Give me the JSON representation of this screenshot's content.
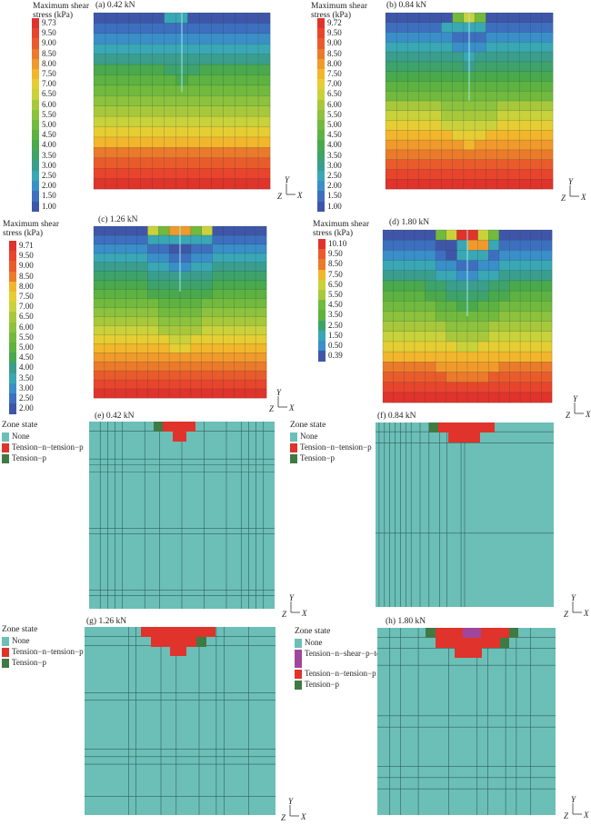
{
  "stress_panels": [
    {
      "id": "a",
      "title": "(a) 0.42 kN",
      "legend_title": [
        "Maximum shear",
        "stress (kPa)"
      ],
      "ticks": [
        "9.73",
        "9.50",
        "9.00",
        "8.50",
        "8.00",
        "7.50",
        "7.00",
        "6.50",
        "6.00",
        "5.50",
        "5.00",
        "4.50",
        "4.00",
        "3.50",
        "3.00",
        "2.50",
        "2.00",
        "1.50",
        "1.00"
      ],
      "axis": {
        "v": "Y",
        "z": "Z",
        "h": "X"
      }
    },
    {
      "id": "b",
      "title": "(b) 0.84 kN",
      "legend_title": [
        "Maximum shear",
        "stress (kPa)"
      ],
      "ticks": [
        "9.72",
        "9.50",
        "9.00",
        "8.50",
        "8.00",
        "7.50",
        "7.00",
        "6.50",
        "6.00",
        "5.50",
        "5.00",
        "4.50",
        "4.00",
        "3.50",
        "3.00",
        "2.50",
        "2.00",
        "1.50",
        "1.00"
      ],
      "axis": {
        "v": "Y",
        "z": "Z",
        "h": "X"
      }
    },
    {
      "id": "c",
      "title": "(c) 1.26 kN",
      "legend_title": [
        "Maximum shear",
        "stress (kPa)"
      ],
      "ticks": [
        "9.71",
        "9.50",
        "9.00",
        "8.50",
        "8.00",
        "7.50",
        "7.00",
        "6.50",
        "6.00",
        "5.50",
        "5.00",
        "4.50",
        "4.00",
        "3.50",
        "3.00",
        "2.50",
        "2.00"
      ],
      "axis": {
        "v": "Y",
        "z": "Z",
        "h": "X"
      }
    },
    {
      "id": "d",
      "title": "(d) 1.80 kN",
      "legend_title": [
        "Maximum shear",
        "stress (kPa)"
      ],
      "ticks": [
        "10.10",
        "9.50",
        "8.50",
        "7.50",
        "6.50",
        "5.50",
        "4.50",
        "3.50",
        "2.50",
        "1.50",
        "0.50",
        "0.39"
      ],
      "axis": {
        "v": "Y",
        "z": "Z",
        "h": "X"
      }
    }
  ],
  "zone_panels": [
    {
      "id": "e",
      "title": "(e) 0.42 kN",
      "legend_title": "Zone state",
      "entries": [
        {
          "label": "None",
          "color": "#6cbfb6"
        },
        {
          "label": "Tension−n−tension−p",
          "color": "#e0332b"
        },
        {
          "label": "Tension−p",
          "color": "#3f7a44"
        }
      ],
      "axis": {
        "v": "Y",
        "z": "Z",
        "h": "X"
      }
    },
    {
      "id": "f",
      "title": "(f) 0.84 kN",
      "legend_title": "Zone state",
      "entries": [
        {
          "label": "None",
          "color": "#6cbfb6"
        },
        {
          "label": "Tension−n−tension−p",
          "color": "#e0332b"
        },
        {
          "label": "Tension−p",
          "color": "#3f7a44"
        }
      ],
      "axis": {
        "v": "Y",
        "z": "Z",
        "h": "X"
      }
    },
    {
      "id": "g",
      "title": "(g) 1.26 kN",
      "legend_title": "Zone state",
      "entries": [
        {
          "label": "None",
          "color": "#6cbfb6"
        },
        {
          "label": "Tension−n−tension−p",
          "color": "#e0332b"
        },
        {
          "label": "Tension−p",
          "color": "#3f7a44"
        }
      ],
      "axis": {
        "v": "Y",
        "z": "Z",
        "h": "X"
      }
    },
    {
      "id": "h",
      "title": "(h) 1.80 kN",
      "legend_title": "Zone state",
      "entries": [
        {
          "label": "None",
          "color": "#6cbfb6"
        },
        {
          "label": "Tension−n−shear−p−tension−p",
          "color": "#a0479d"
        },
        {
          "label": "Tension−n−tension−p",
          "color": "#e0332b"
        },
        {
          "label": "Tension−p",
          "color": "#3f7a44"
        }
      ],
      "axis": {
        "v": "Y",
        "z": "Z",
        "h": "X"
      }
    }
  ],
  "colors": {
    "stress_scale": [
      "#e0332b",
      "#e8452c",
      "#ea5b2c",
      "#ec7a2b",
      "#f09a2b",
      "#f2b62c",
      "#e6cd33",
      "#c9d23a",
      "#a8c83c",
      "#8cc23d",
      "#72ba3e",
      "#5db242",
      "#4aa94c",
      "#3ea36a",
      "#3b9e8d",
      "#3aa7b5",
      "#3a8fc9",
      "#3e6fbf",
      "#3f56a8"
    ],
    "zone_none": "#6cbfb6",
    "zone_red": "#e0332b",
    "zone_green": "#3f7a44",
    "zone_purple": "#a0479d"
  }
}
